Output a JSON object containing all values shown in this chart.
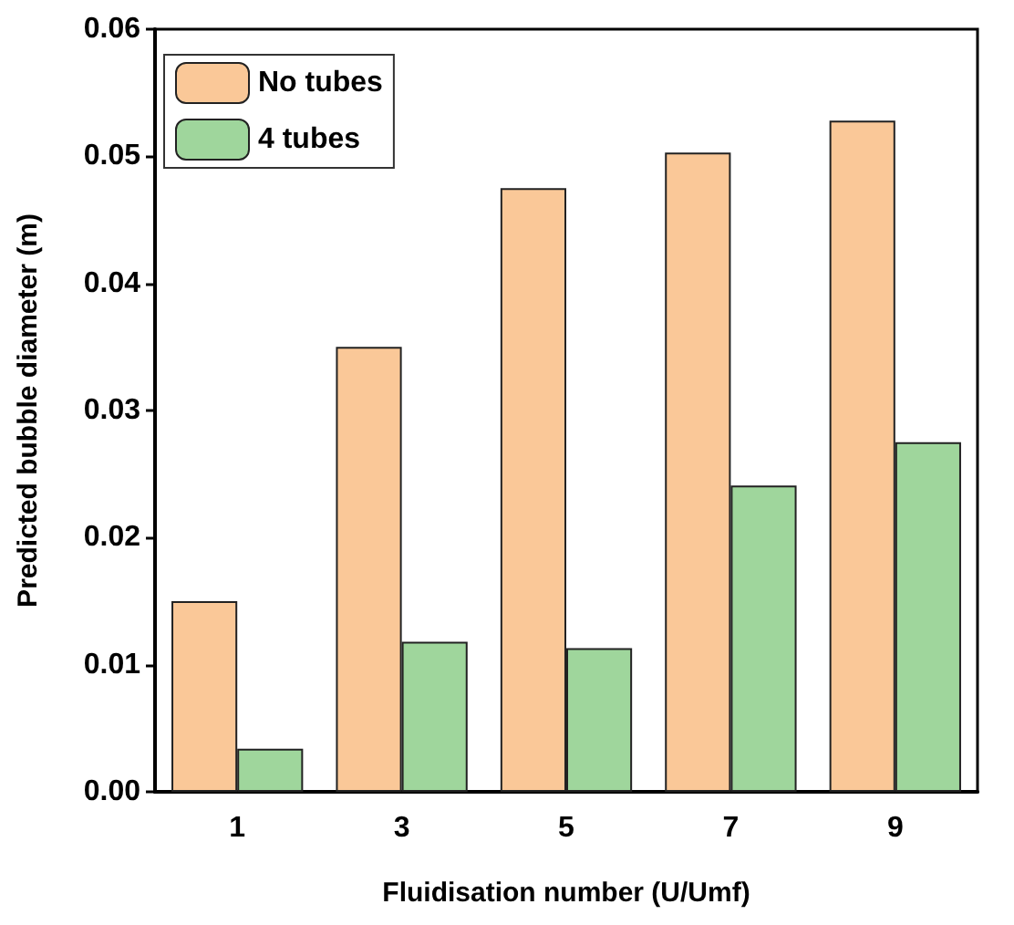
{
  "chart_data": {
    "type": "bar",
    "xlabel": "Fluidisation number (U/Umf)",
    "ylabel": "Predicted bubble diameter (m)",
    "categories": [
      "1",
      "3",
      "5",
      "7",
      "9"
    ],
    "series": [
      {
        "name": "No tubes",
        "color": "#fac898",
        "values": [
          0.015,
          0.035,
          0.0475,
          0.0503,
          0.0528
        ]
      },
      {
        "name": "4 tubes",
        "color": "#9fd69c",
        "values": [
          0.0034,
          0.0118,
          0.0113,
          0.0241,
          0.0275
        ]
      }
    ],
    "ylim": [
      0,
      0.06
    ],
    "yticks": [
      {
        "value": 0,
        "label": "0.00"
      },
      0.01,
      0.02,
      0.03,
      0.04,
      0.05,
      0.06
    ],
    "grid": false,
    "legend": "top left"
  }
}
